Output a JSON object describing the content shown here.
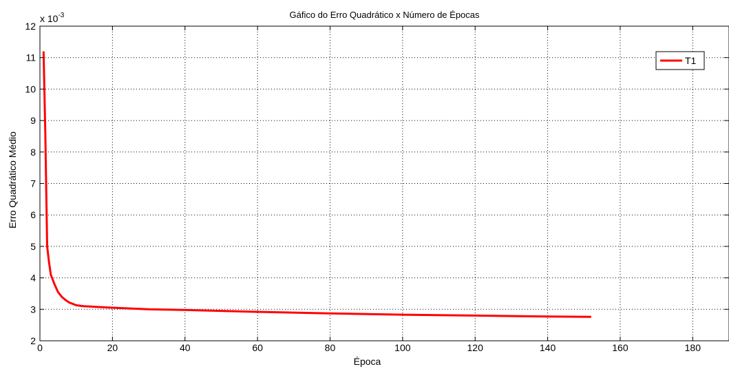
{
  "chart_data": {
    "type": "line",
    "title": "Gáfico do Erro Quadrático x Número de Épocas",
    "xlabel": "Época",
    "ylabel": "Erro Quadrático Médio",
    "y_exponent_label": "x 10",
    "y_exponent_power": "-3",
    "xlim": [
      0,
      190
    ],
    "ylim": [
      2,
      12
    ],
    "x_ticks": [
      0,
      20,
      40,
      60,
      80,
      100,
      120,
      140,
      160,
      180
    ],
    "y_ticks": [
      2,
      3,
      4,
      5,
      6,
      7,
      8,
      9,
      10,
      11,
      12
    ],
    "grid": true,
    "legend_position": "top-right",
    "series": [
      {
        "name": "T1",
        "color": "#ff0000",
        "x": [
          1,
          1.5,
          2,
          2.5,
          3,
          4,
          5,
          6,
          7,
          8,
          10,
          12,
          15,
          20,
          30,
          40,
          60,
          80,
          100,
          120,
          140,
          152
        ],
        "y": [
          11.2,
          8.5,
          5.0,
          4.5,
          4.1,
          3.8,
          3.55,
          3.4,
          3.3,
          3.22,
          3.13,
          3.1,
          3.08,
          3.05,
          3.0,
          2.98,
          2.92,
          2.87,
          2.83,
          2.8,
          2.77,
          2.76
        ]
      }
    ]
  }
}
